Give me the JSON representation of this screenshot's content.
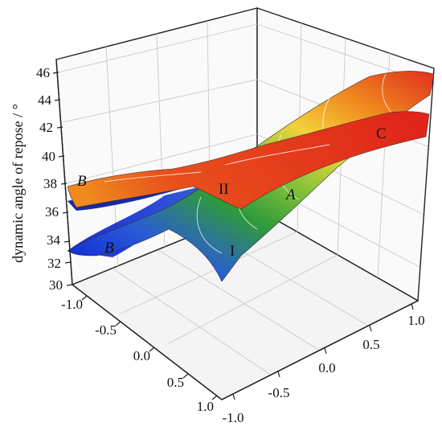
{
  "chart_data": {
    "type": "surface",
    "title": "",
    "zlabel": "dynamic angle of repose / °",
    "xlabel": "",
    "ylabel": "",
    "x_ticks": [
      "-1.0",
      "-0.5",
      "0.0",
      "0.5",
      "1.0"
    ],
    "y_ticks": [
      "-1.0",
      "-0.5",
      "0.0",
      "0.5",
      "1.0"
    ],
    "z_ticks": [
      "30",
      "32",
      "34",
      "36",
      "38",
      "40",
      "42",
      "44",
      "46"
    ],
    "xlim": [
      -1.0,
      1.0
    ],
    "ylim": [
      -1.0,
      1.0
    ],
    "zlim": [
      30,
      46
    ],
    "grid": true,
    "colormap": [
      "#0a1fd8",
      "#2a5bd6",
      "#2e9b3a",
      "#8cc43a",
      "#f2d23a",
      "#f08a1e",
      "#e0301c"
    ],
    "series": [
      {
        "name": "I",
        "corner_values": [
          {
            "x": -1.0,
            "y": -1.0,
            "z": 33.6
          },
          {
            "x": 1.0,
            "y": -1.0,
            "z": 39.4
          },
          {
            "x": 1.0,
            "y": 1.0,
            "z": 46.0
          },
          {
            "x": -1.0,
            "y": 1.0,
            "z": 36.5
          }
        ]
      },
      {
        "name": "II",
        "corner_values": [
          {
            "x": -1.0,
            "y": -1.0,
            "z": 37.3
          },
          {
            "x": 1.0,
            "y": -1.0,
            "z": 38.0
          },
          {
            "x": 1.0,
            "y": 1.0,
            "z": 41.3
          },
          {
            "x": -1.0,
            "y": 1.0,
            "z": 38.7
          }
        ]
      }
    ],
    "annotations": [
      {
        "text": "I",
        "style": "normal"
      },
      {
        "text": "II",
        "style": "normal"
      },
      {
        "text": "A",
        "style": "italic"
      },
      {
        "text": "B",
        "style": "italic"
      },
      {
        "text": "B",
        "style": "italic"
      },
      {
        "text": "C",
        "style": "normal"
      }
    ]
  }
}
